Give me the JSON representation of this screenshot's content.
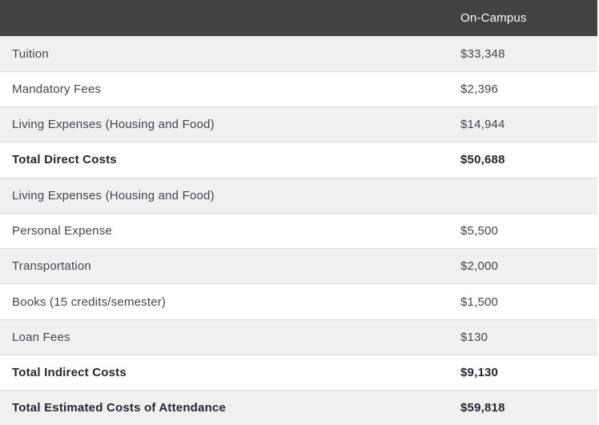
{
  "table": {
    "header": {
      "label_column": "",
      "value_column": "On-Campus"
    },
    "rows": [
      {
        "label": "Tuition",
        "value": "$33,348",
        "bold": false
      },
      {
        "label": "Mandatory Fees",
        "value": "$2,396",
        "bold": false
      },
      {
        "label": "Living Expenses (Housing and Food)",
        "value": "$14,944",
        "bold": false
      },
      {
        "label": "Total Direct Costs",
        "value": "$50,688",
        "bold": true
      },
      {
        "label": "Living Expenses (Housing and Food)",
        "value": "",
        "bold": false
      },
      {
        "label": "Personal Expense",
        "value": "$5,500",
        "bold": false
      },
      {
        "label": "Transportation",
        "value": "$2,000",
        "bold": false
      },
      {
        "label": "Books (15 credits/semester)",
        "value": "$1,500",
        "bold": false
      },
      {
        "label": "Loan Fees",
        "value": "$130",
        "bold": false
      },
      {
        "label": "Total Indirect Costs",
        "value": "$9,130",
        "bold": true
      },
      {
        "label": "Total Estimated Costs of Attendance",
        "value": "$59,818",
        "bold": true
      }
    ]
  },
  "colors": {
    "header_bg": "#424242",
    "header_text": "#ffffff",
    "row_alt_bg": "#f0f0f0",
    "row_bg": "#ffffff",
    "divider": "#d9d9d9",
    "text": "#45454f",
    "bold_text": "#26262f"
  }
}
